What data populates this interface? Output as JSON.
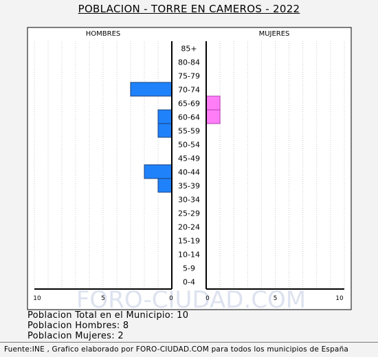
{
  "chart_data": {
    "type": "bar",
    "title": "POBLACION - TORRE EN CAMEROS - 2022",
    "left_label": "HOMBRES",
    "right_label": "MUJERES",
    "categories": [
      "85+",
      "80-84",
      "75-79",
      "70-74",
      "65-69",
      "60-64",
      "55-59",
      "50-54",
      "45-49",
      "40-44",
      "35-39",
      "30-34",
      "25-29",
      "20-24",
      "15-19",
      "10-14",
      "5-9",
      "0-4"
    ],
    "series": [
      {
        "name": "HOMBRES",
        "values": [
          0,
          0,
          0,
          3,
          0,
          1,
          1,
          0,
          0,
          2,
          1,
          0,
          0,
          0,
          0,
          0,
          0,
          0
        ]
      },
      {
        "name": "MUJERES",
        "values": [
          0,
          0,
          0,
          0,
          1,
          1,
          0,
          0,
          0,
          0,
          0,
          0,
          0,
          0,
          0,
          0,
          0,
          0
        ]
      }
    ],
    "xlim": [
      0,
      10
    ],
    "x_ticks": [
      "10",
      "5",
      "0",
      "0",
      "5",
      "10"
    ],
    "grid": true,
    "colors": {
      "hombres": "#1f82fa",
      "mujeres": "#ff7ef7"
    }
  },
  "watermark": "FORO-CIUDAD.COM",
  "summary": {
    "total": "Poblacion Total en el Municipio: 10",
    "men": "Poblacion Hombres: 8",
    "women": "Poblacion Mujeres: 2"
  },
  "footer": "Fuente:INE , Grafico elaborado por FORO-CIUDAD.COM para todos los municipios de España"
}
